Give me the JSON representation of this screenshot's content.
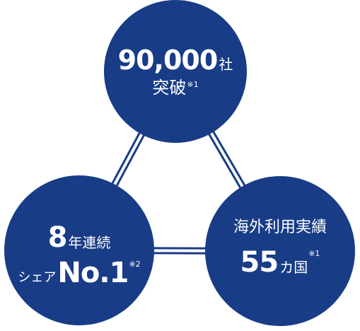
{
  "colors": {
    "circle": "#183c86",
    "connector": "#183c86",
    "text": "#ffffff"
  },
  "top_circle": {
    "number": "90,000",
    "unit": "社",
    "line2": "突破",
    "note": "※1"
  },
  "left_circle": {
    "number": "8",
    "line1_suffix": "年連続",
    "line2_prefix": "シェア",
    "rank": "No.1",
    "note": "※2"
  },
  "right_circle": {
    "line1": "海外利用実績",
    "number": "55",
    "unit": "カ国",
    "note": "※1"
  }
}
